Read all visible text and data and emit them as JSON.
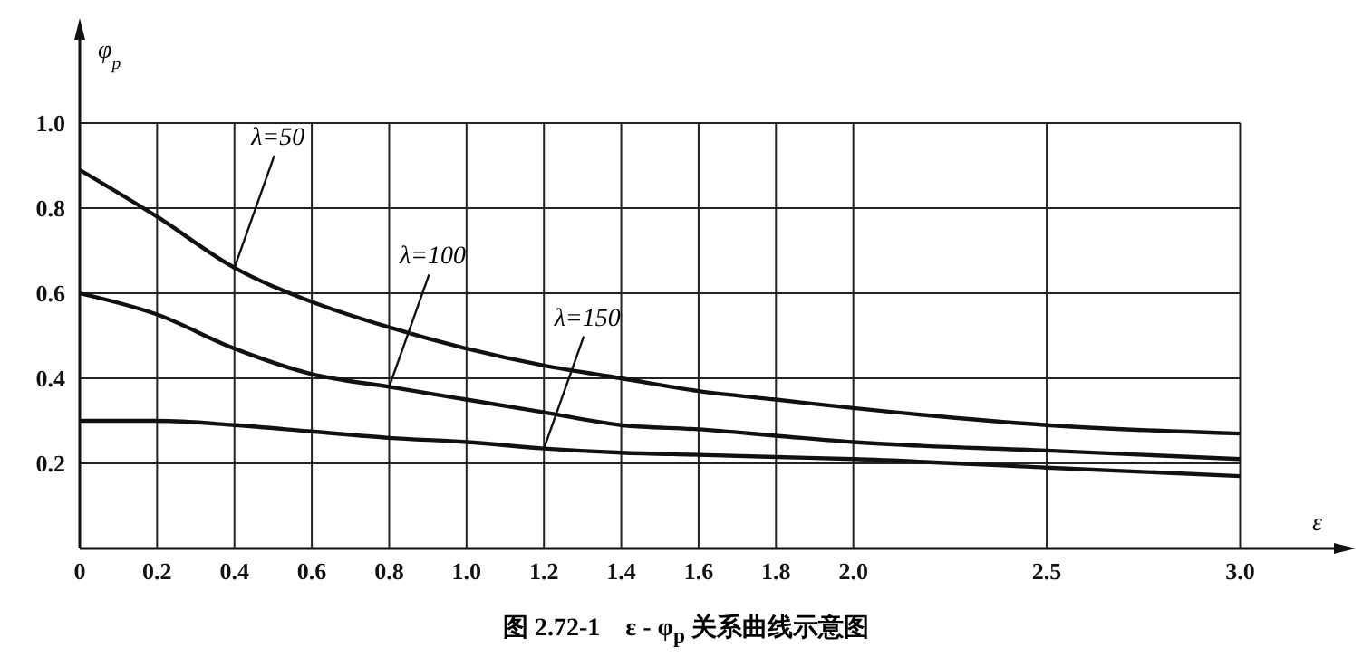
{
  "chart_data": {
    "type": "line",
    "title": "图 2.72-1　ε - φ$_{p}$ 关系曲线示意图",
    "xlabel": "ε",
    "ylabel": "φ$_{p}$",
    "x": [
      0,
      0.2,
      0.4,
      0.6,
      0.8,
      1.0,
      1.2,
      1.4,
      1.6,
      1.8,
      2.0,
      2.5,
      3.0
    ],
    "series": [
      {
        "name": "λ=50",
        "color": "#111111",
        "values": [
          0.89,
          0.78,
          0.66,
          0.58,
          0.52,
          0.47,
          0.43,
          0.4,
          0.37,
          0.35,
          0.33,
          0.29,
          0.27
        ]
      },
      {
        "name": "λ=100",
        "color": "#111111",
        "values": [
          0.6,
          0.55,
          0.47,
          0.41,
          0.38,
          0.35,
          0.32,
          0.29,
          0.28,
          0.265,
          0.25,
          0.23,
          0.21
        ]
      },
      {
        "name": "λ=150",
        "color": "#111111",
        "values": [
          0.3,
          0.3,
          0.29,
          0.275,
          0.26,
          0.25,
          0.235,
          0.225,
          0.22,
          0.215,
          0.21,
          0.19,
          0.17
        ]
      }
    ],
    "xlim": [
      0,
      3.28
    ],
    "ylim": [
      0,
      1.23
    ],
    "xticks": [
      0,
      0.2,
      0.4,
      0.6,
      0.8,
      {
        "value": 1,
        "label": "1.0"
      },
      1.2,
      1.4,
      1.6,
      1.8,
      {
        "value": 2,
        "label": "2.0"
      },
      2.5,
      {
        "value": 3,
        "label": "3.0"
      }
    ],
    "yticks": [
      {
        "value": 0,
        "label": null
      },
      0.2,
      0.4,
      0.6,
      0.8,
      {
        "value": 1,
        "label": "1.0"
      }
    ],
    "grid": true,
    "legend": false,
    "marker": "none",
    "line_style": "solid"
  }
}
